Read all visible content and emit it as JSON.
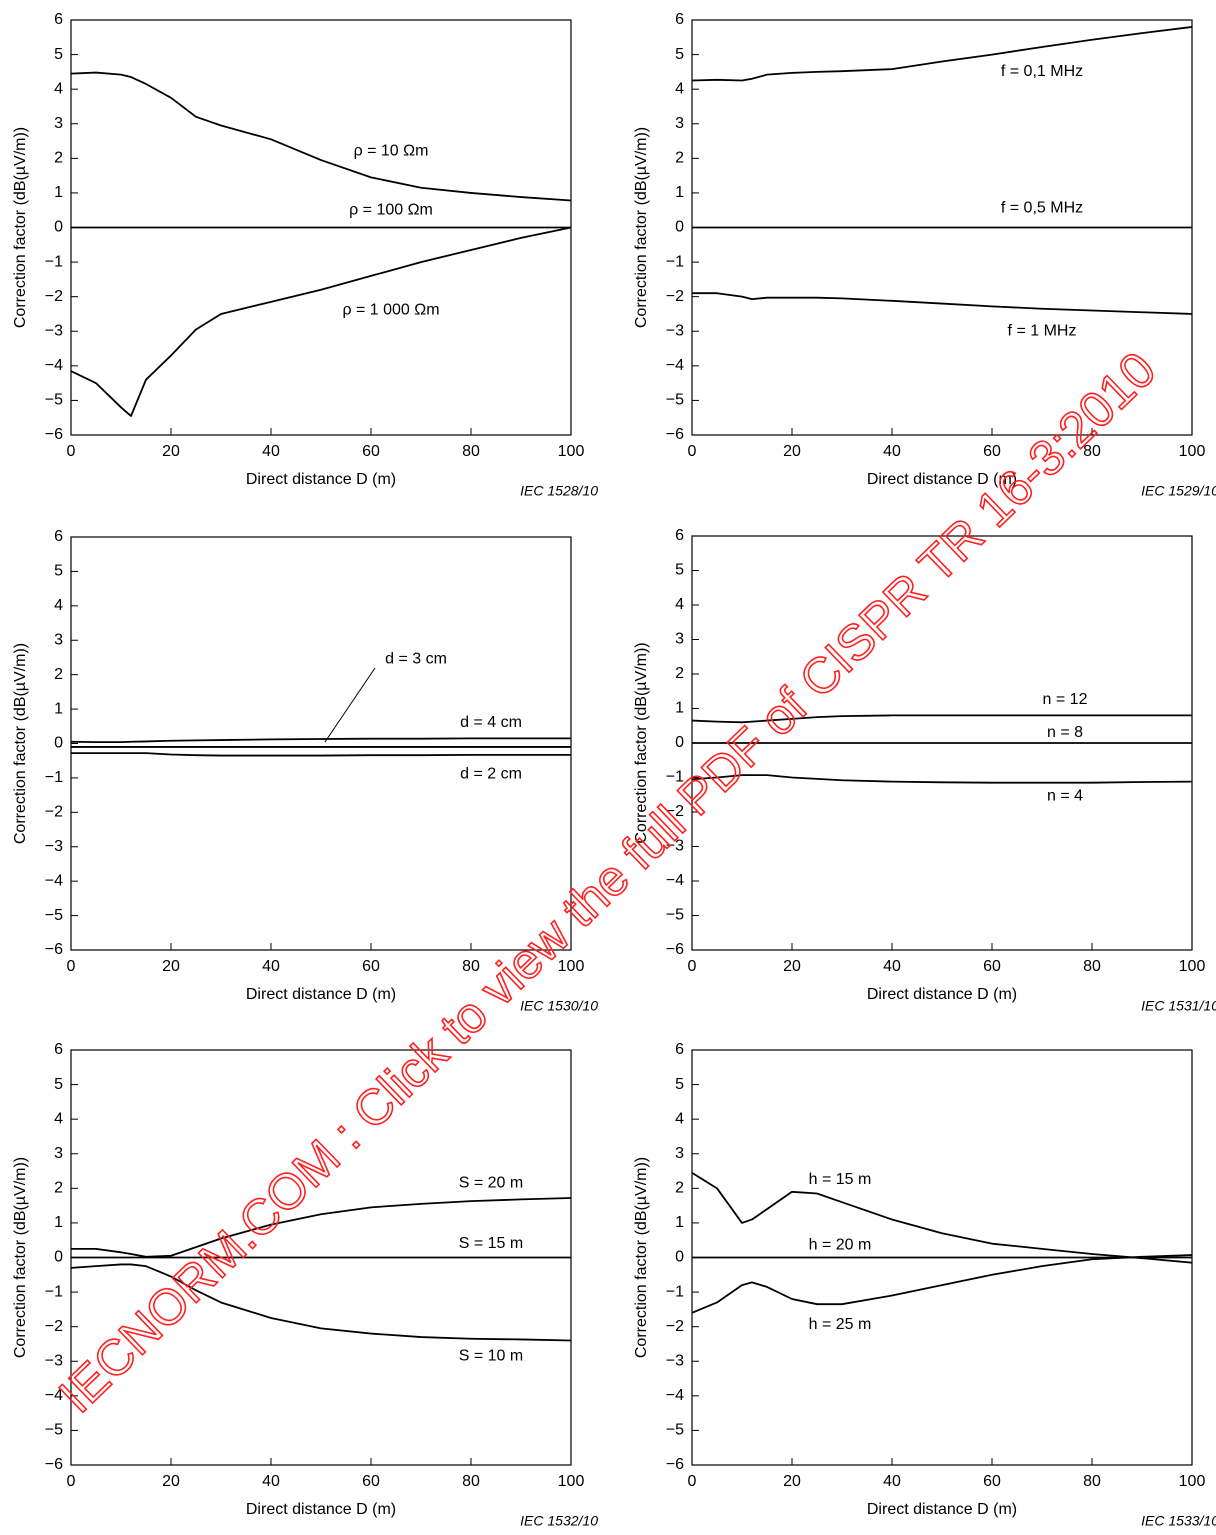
{
  "chart_data": [
    {
      "type": "line",
      "x_label": "Direct distance D (m)",
      "y_label": "Correction factor   (dB(µV/m))",
      "note": "IEC   1528/10",
      "x": [
        0,
        5,
        10,
        12,
        15,
        20,
        25,
        30,
        40,
        50,
        60,
        70,
        80,
        90,
        100
      ],
      "xlim": [
        0,
        100
      ],
      "xticks": [
        0,
        20,
        40,
        60,
        80,
        100
      ],
      "ylim": [
        -6,
        6
      ],
      "yticks": [
        {
          "value": -6,
          "label": "−6"
        },
        {
          "value": -5,
          "label": "−5"
        },
        {
          "value": -4,
          "label": "−4"
        },
        {
          "value": -3,
          "label": "−3"
        },
        {
          "value": -2,
          "label": "−2"
        },
        {
          "value": -1,
          "label": "−1"
        },
        0,
        1,
        2,
        3,
        4,
        5,
        6
      ],
      "series": [
        {
          "name": "ρ = 10 Ωm",
          "color": "#000000",
          "values": [
            4.45,
            4.48,
            4.42,
            4.35,
            4.15,
            3.75,
            3.2,
            2.95,
            2.55,
            1.95,
            1.45,
            1.15,
            1.0,
            0.88,
            0.78
          ]
        },
        {
          "name": "ρ = 100 Ωm",
          "color": "#000000",
          "values": [
            0,
            0,
            0,
            0,
            0,
            0,
            0,
            0,
            0,
            0,
            0,
            0,
            0,
            0,
            0
          ]
        },
        {
          "name": "ρ = 1 000 Ωm",
          "color": "#000000",
          "values": [
            -4.15,
            -4.5,
            -5.2,
            -5.45,
            -4.4,
            -3.7,
            -2.95,
            -2.5,
            -2.15,
            -1.8,
            -1.4,
            -1.0,
            -0.65,
            -0.3,
            0
          ]
        }
      ]
    },
    {
      "type": "line",
      "x_label": "Direct distance D (m)",
      "y_label": "Correction factor   (dB(µV/m))",
      "note": "IEC   1529/10",
      "x": [
        0,
        5,
        10,
        12,
        15,
        20,
        25,
        30,
        40,
        50,
        60,
        70,
        80,
        90,
        100
      ],
      "xlim": [
        0,
        100
      ],
      "xticks": [
        0,
        20,
        40,
        60,
        80,
        100
      ],
      "ylim": [
        -6,
        6
      ],
      "yticks": [
        {
          "value": -6,
          "label": "−6"
        },
        {
          "value": -5,
          "label": "−5"
        },
        {
          "value": -4,
          "label": "−4"
        },
        {
          "value": -3,
          "label": "−3"
        },
        {
          "value": -2,
          "label": "−2"
        },
        {
          "value": -1,
          "label": "−1"
        },
        0,
        1,
        2,
        3,
        4,
        5,
        6
      ],
      "series": [
        {
          "name": "f = 0,1 MHz",
          "color": "#000000",
          "values": [
            4.25,
            4.27,
            4.25,
            4.3,
            4.42,
            4.47,
            4.5,
            4.52,
            4.58,
            4.8,
            5.0,
            5.22,
            5.43,
            5.62,
            5.8
          ]
        },
        {
          "name": "f = 0,5 MHz",
          "color": "#000000",
          "values": [
            0,
            0,
            0,
            0,
            0,
            0,
            0,
            0,
            0,
            0,
            0,
            0,
            0,
            0,
            0
          ]
        },
        {
          "name": "f = 1 MHz",
          "color": "#000000",
          "values": [
            -1.9,
            -1.9,
            -2.0,
            -2.07,
            -2.03,
            -2.03,
            -2.03,
            -2.05,
            -2.12,
            -2.2,
            -2.28,
            -2.35,
            -2.4,
            -2.45,
            -2.5
          ]
        }
      ]
    },
    {
      "type": "line",
      "x_label": "Direct distance D (m)",
      "y_label": "Correction factor   (dB(µV/m))",
      "note": "IEC   1530/10",
      "x": [
        0,
        5,
        10,
        12,
        15,
        20,
        25,
        30,
        40,
        50,
        60,
        70,
        80,
        90,
        100
      ],
      "xlim": [
        0,
        100
      ],
      "xticks": [
        0,
        20,
        40,
        60,
        80,
        100
      ],
      "ylim": [
        -6,
        6
      ],
      "yticks": [
        {
          "value": -6,
          "label": "−6"
        },
        {
          "value": -5,
          "label": "−5"
        },
        {
          "value": -4,
          "label": "−4"
        },
        {
          "value": -3,
          "label": "−3"
        },
        {
          "value": -2,
          "label": "−2"
        },
        {
          "value": -1,
          "label": "−1"
        },
        0,
        1,
        2,
        3,
        4,
        5,
        6
      ],
      "series": [
        {
          "name": "d = 3 cm",
          "color": "#000000",
          "values": [
            -0.1,
            -0.1,
            -0.1,
            -0.1,
            -0.1,
            -0.1,
            -0.1,
            -0.1,
            -0.1,
            -0.1,
            -0.1,
            -0.1,
            -0.1,
            -0.1,
            -0.1
          ]
        },
        {
          "name": "d = 4 cm",
          "color": "#000000",
          "values": [
            0.05,
            0.04,
            0.04,
            0.05,
            0.06,
            0.08,
            0.09,
            0.1,
            0.12,
            0.13,
            0.14,
            0.14,
            0.15,
            0.15,
            0.15
          ]
        },
        {
          "name": "d = 2 cm",
          "color": "#000000",
          "values": [
            -0.28,
            -0.28,
            -0.28,
            -0.28,
            -0.28,
            -0.32,
            -0.34,
            -0.35,
            -0.35,
            -0.35,
            -0.34,
            -0.34,
            -0.33,
            -0.33,
            -0.33
          ]
        }
      ]
    },
    {
      "type": "line",
      "x_label": "Direct distance D (m)",
      "y_label": "Correction factor   (dB(µV/m))",
      "note": "IEC   1531/10",
      "x": [
        0,
        5,
        10,
        12,
        15,
        20,
        25,
        30,
        40,
        50,
        60,
        70,
        80,
        90,
        100
      ],
      "xlim": [
        0,
        100
      ],
      "xticks": [
        0,
        20,
        40,
        60,
        80,
        100
      ],
      "ylim": [
        -6,
        6
      ],
      "yticks": [
        {
          "value": -6,
          "label": "−6"
        },
        {
          "value": -5,
          "label": "−5"
        },
        {
          "value": -4,
          "label": "−4"
        },
        {
          "value": -3,
          "label": "−3"
        },
        {
          "value": -2,
          "label": "−2"
        },
        {
          "value": -1,
          "label": "−1"
        },
        0,
        1,
        2,
        3,
        4,
        5,
        6
      ],
      "series": [
        {
          "name": "n = 12",
          "color": "#000000",
          "values": [
            0.65,
            0.62,
            0.6,
            0.62,
            0.65,
            0.7,
            0.75,
            0.78,
            0.8,
            0.8,
            0.8,
            0.8,
            0.8,
            0.8,
            0.8
          ]
        },
        {
          "name": "n = 8",
          "color": "#000000",
          "values": [
            0,
            0,
            0,
            0,
            0,
            0,
            0,
            0,
            0,
            0,
            0,
            0,
            0,
            0,
            0
          ]
        },
        {
          "name": "n = 4",
          "color": "#000000",
          "values": [
            -1.05,
            -1.0,
            -0.93,
            -0.93,
            -0.93,
            -1.0,
            -1.04,
            -1.08,
            -1.12,
            -1.14,
            -1.15,
            -1.15,
            -1.15,
            -1.13,
            -1.12
          ]
        }
      ]
    },
    {
      "type": "line",
      "x_label": "Direct distance D (m)",
      "y_label": "Correction factor   (dB(µV/m))",
      "note": "IEC   1532/10",
      "x": [
        0,
        5,
        10,
        12,
        15,
        20,
        25,
        30,
        40,
        50,
        60,
        70,
        80,
        90,
        100
      ],
      "xlim": [
        0,
        100
      ],
      "xticks": [
        0,
        20,
        40,
        60,
        80,
        100
      ],
      "ylim": [
        -6,
        6
      ],
      "yticks": [
        {
          "value": -6,
          "label": "−6"
        },
        {
          "value": -5,
          "label": "−5"
        },
        {
          "value": -4,
          "label": "−4"
        },
        {
          "value": -3,
          "label": "−3"
        },
        {
          "value": -2,
          "label": "−2"
        },
        {
          "value": -1,
          "label": "−1"
        },
        0,
        1,
        2,
        3,
        4,
        5,
        6
      ],
      "series": [
        {
          "name": "S = 20 m",
          "color": "#000000",
          "values": [
            0.25,
            0.25,
            0.15,
            0.1,
            0.02,
            0.05,
            0.3,
            0.55,
            0.95,
            1.25,
            1.45,
            1.55,
            1.63,
            1.68,
            1.72
          ]
        },
        {
          "name": "S = 15 m",
          "color": "#000000",
          "values": [
            0,
            0,
            0,
            0,
            0,
            0,
            0,
            0,
            0,
            0,
            0,
            0,
            0,
            0,
            0
          ]
        },
        {
          "name": "S = 10 m",
          "color": "#000000",
          "values": [
            -0.3,
            -0.25,
            -0.2,
            -0.2,
            -0.25,
            -0.55,
            -0.95,
            -1.3,
            -1.75,
            -2.05,
            -2.2,
            -2.3,
            -2.35,
            -2.37,
            -2.4
          ]
        }
      ]
    },
    {
      "type": "line",
      "x_label": "Direct distance D (m)",
      "y_label": "Correction factor   (dB(µV/m))",
      "note": "IEC   1533/10",
      "x": [
        0,
        5,
        10,
        12,
        15,
        20,
        25,
        30,
        40,
        50,
        60,
        70,
        80,
        90,
        100
      ],
      "xlim": [
        0,
        100
      ],
      "xticks": [
        0,
        20,
        40,
        60,
        80,
        100
      ],
      "ylim": [
        -6,
        6
      ],
      "yticks": [
        {
          "value": -6,
          "label": "−6"
        },
        {
          "value": -5,
          "label": "−5"
        },
        {
          "value": -4,
          "label": "−4"
        },
        {
          "value": -3,
          "label": "−3"
        },
        {
          "value": -2,
          "label": "−2"
        },
        {
          "value": -1,
          "label": "−1"
        },
        0,
        1,
        2,
        3,
        4,
        5,
        6
      ],
      "series": [
        {
          "name": "h = 15 m",
          "color": "#000000",
          "values": [
            2.45,
            2.0,
            1.0,
            1.1,
            1.4,
            1.9,
            1.85,
            1.6,
            1.1,
            0.7,
            0.4,
            0.25,
            0.1,
            -0.02,
            -0.15
          ]
        },
        {
          "name": "h = 20 m",
          "color": "#000000",
          "values": [
            0,
            0,
            0,
            0,
            0,
            0,
            0,
            0,
            0,
            0,
            0,
            0,
            0,
            0,
            0
          ]
        },
        {
          "name": "h = 25 m",
          "color": "#000000",
          "values": [
            -1.6,
            -1.3,
            -0.8,
            -0.72,
            -0.85,
            -1.2,
            -1.35,
            -1.35,
            -1.1,
            -0.8,
            -0.5,
            -0.25,
            -0.05,
            0.02,
            0.07
          ]
        }
      ]
    }
  ],
  "watermark": "IECNORM.COM : Click to view the full PDF of CISPR TR 16-3:2010"
}
